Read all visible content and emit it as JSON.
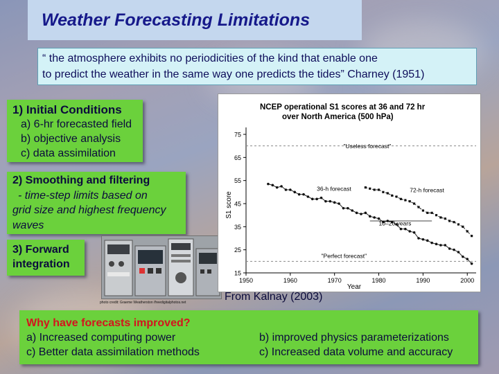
{
  "title": "Weather Forecasting Limitations",
  "quote": {
    "line1": "“ the atmosphere exhibits no periodicities of the kind that enable one",
    "line2": "to predict the weather in the same way one predicts the tides” Charney (1951)"
  },
  "initial_conditions": {
    "heading": "1) Initial Conditions",
    "items": [
      "a) 6-hr forecasted field",
      "b) objective analysis",
      "c) data assimilation"
    ]
  },
  "smoothing": {
    "heading": "2) Smoothing and filtering",
    "line1": "- time-step limits based on",
    "line2": "grid size and highest frequency",
    "line3": "waves"
  },
  "forward": {
    "line1": "3) Forward",
    "line2": "integration"
  },
  "photo_credit": "photo credit: Graeme Weatherston /freedigitalphotos.net",
  "source": "From Kalnay (2003)",
  "bottom": {
    "question": "Why have forecasts improved?",
    "a": "a) Increased computing power",
    "b": "b) improved physics parameterizations",
    "c": "c) Better data assimilation methods",
    "d": "c) Increased data volume and accuracy"
  },
  "chart_data": {
    "type": "line",
    "title_line1": "NCEP operational S1 scores at 36 and 72 hr",
    "title_line2": "over North America (500 hPa)",
    "ylabel": "S1 score",
    "xlabel": "Year",
    "xlim": [
      1950,
      2002
    ],
    "ylim": [
      15,
      78
    ],
    "xticks": [
      1950,
      1960,
      1970,
      1980,
      1990,
      2000
    ],
    "yticks": [
      15,
      25,
      35,
      45,
      55,
      65,
      75
    ],
    "annotations": {
      "useless": "\"Useless forecast\"",
      "perfect": "\"Perfect forecast\"",
      "h36": "36-h forecast",
      "h72": "72-h forecast",
      "gap": "10–20 years"
    },
    "series": [
      {
        "name": "36-h forecast",
        "x": [
          1955,
          1956,
          1957,
          1958,
          1959,
          1960,
          1961,
          1962,
          1963,
          1964,
          1965,
          1966,
          1967,
          1968,
          1969,
          1970,
          1971,
          1972,
          1973,
          1974,
          1975,
          1976,
          1977,
          1978,
          1979,
          1980,
          1981,
          1982,
          1983,
          1984,
          1985,
          1986,
          1987,
          1988,
          1989,
          1990,
          1991,
          1992,
          1993,
          1994,
          1995,
          1996,
          1997,
          1998,
          1999,
          2000,
          2001
        ],
        "values": [
          53.5,
          53,
          52,
          52.5,
          51,
          51,
          50,
          49,
          49,
          48,
          47,
          47,
          47.5,
          46,
          46,
          45.5,
          45,
          43,
          43,
          42,
          41,
          40.5,
          41,
          39.5,
          39,
          38.5,
          37,
          37.5,
          37,
          36,
          34,
          34,
          33,
          32.5,
          30,
          29.5,
          29,
          28,
          27.5,
          27,
          27,
          25.5,
          25,
          24,
          22,
          21,
          19
        ]
      },
      {
        "name": "72-h forecast",
        "x": [
          1977,
          1978,
          1979,
          1980,
          1981,
          1982,
          1983,
          1984,
          1985,
          1986,
          1987,
          1988,
          1989,
          1990,
          1991,
          1992,
          1993,
          1994,
          1995,
          1996,
          1997,
          1998,
          1999,
          2000,
          2001
        ],
        "values": [
          52,
          51.5,
          51,
          51,
          50,
          49.5,
          48.5,
          48,
          47,
          46.5,
          46,
          45,
          43.5,
          42,
          41,
          41,
          40,
          39,
          38.5,
          37.5,
          37,
          36,
          35,
          33,
          31
        ]
      }
    ]
  }
}
